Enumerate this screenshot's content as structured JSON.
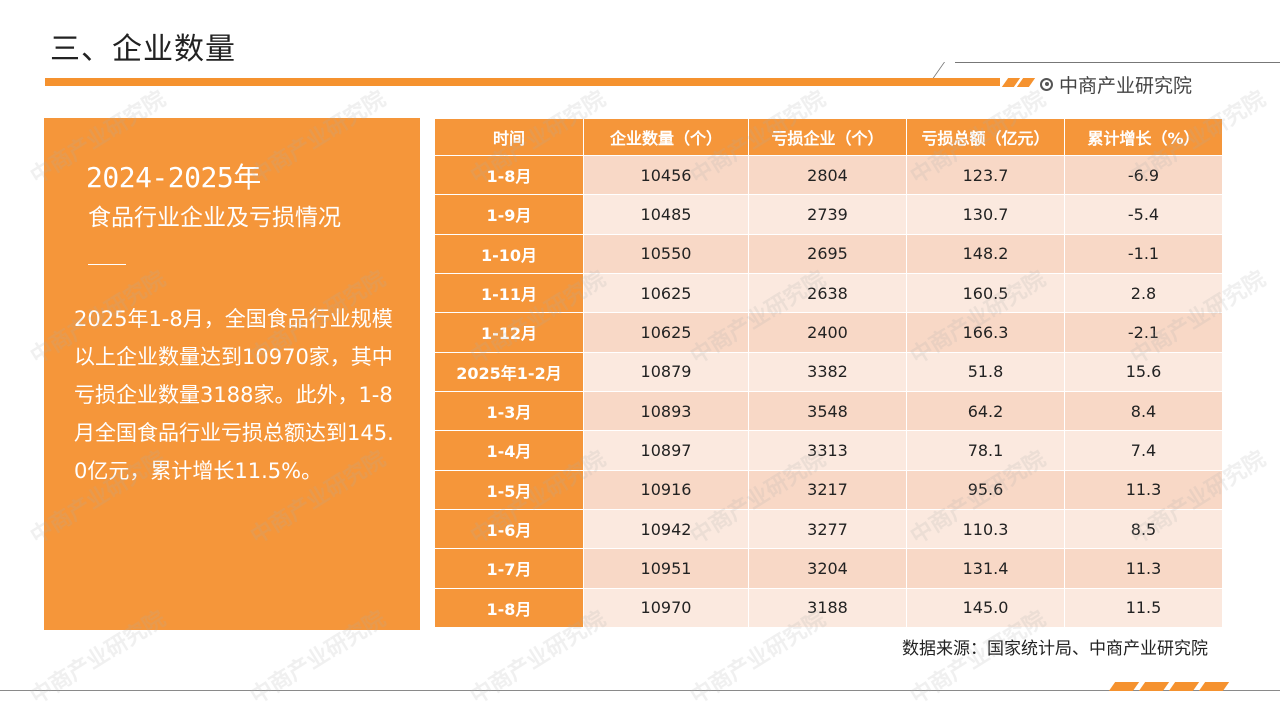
{
  "page": {
    "title": "三、企业数量",
    "brand": "中商产业研究院",
    "source": "数据来源：国家统计局、中商产业研究院",
    "watermark": "中商产业研究院"
  },
  "panel": {
    "year": "2024-2025年",
    "subtitle": "食品行业企业及亏损情况",
    "body": "2025年1-8月，全国食品行业规模以上企业数量达到10970家，其中亏损企业数量3188家。此外，1-8月全国食品行业亏损总额达到145.0亿元，累计增长11.5%。"
  },
  "table": {
    "headers": [
      "时间",
      "企业数量（个）",
      "亏损企业（个）",
      "亏损总额（亿元）",
      "累计增长（%）"
    ],
    "rows": [
      [
        "1-8月",
        "10456",
        "2804",
        "123.7",
        "-6.9"
      ],
      [
        "1-9月",
        "10485",
        "2739",
        "130.7",
        "-5.4"
      ],
      [
        "1-10月",
        "10550",
        "2695",
        "148.2",
        "-1.1"
      ],
      [
        "1-11月",
        "10625",
        "2638",
        "160.5",
        "2.8"
      ],
      [
        "1-12月",
        "10625",
        "2400",
        "166.3",
        "-2.1"
      ],
      [
        "2025年1-2月",
        "10879",
        "3382",
        "51.8",
        "15.6"
      ],
      [
        "1-3月",
        "10893",
        "3548",
        "64.2",
        "8.4"
      ],
      [
        "1-4月",
        "10897",
        "3313",
        "78.1",
        "7.4"
      ],
      [
        "1-5月",
        "10916",
        "3217",
        "95.6",
        "11.3"
      ],
      [
        "1-6月",
        "10942",
        "3277",
        "110.3",
        "8.5"
      ],
      [
        "1-7月",
        "10951",
        "3204",
        "131.4",
        "11.3"
      ],
      [
        "1-8月",
        "10970",
        "3188",
        "145.0",
        "11.5"
      ]
    ]
  },
  "colors": {
    "accent": "#f5963a",
    "row_odd": "#f8d8c6",
    "row_even": "#fbe9df"
  }
}
